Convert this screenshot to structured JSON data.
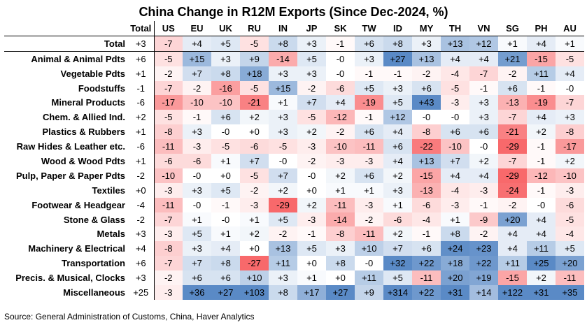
{
  "chart_data": {
    "type": "heatmap",
    "title": "China Change in R12M Exports (Since Dec-2024, %)",
    "columns": [
      "Total",
      "US",
      "EU",
      "UK",
      "RU",
      "IN",
      "JP",
      "SK",
      "TW",
      "ID",
      "MY",
      "TH",
      "VN",
      "SG",
      "PH",
      "AU"
    ],
    "rows": [
      {
        "label": "Total",
        "values": [
          "+3",
          "-7",
          "+4",
          "+5",
          "-5",
          "+8",
          "+3",
          "-1",
          "+6",
          "+8",
          "+3",
          "+13",
          "+12",
          "+1",
          "+4",
          "+1"
        ]
      },
      {
        "label": "Animal & Animal Pdts",
        "values": [
          "+6",
          "-5",
          "+15",
          "+3",
          "+9",
          "-14",
          "+5",
          "-0",
          "+3",
          "+27",
          "+13",
          "+4",
          "+4",
          "+21",
          "-15",
          "-5"
        ]
      },
      {
        "label": "Vegetable Pdts",
        "values": [
          "+1",
          "-2",
          "+7",
          "+8",
          "+18",
          "+3",
          "+3",
          "-0",
          "-1",
          "-1",
          "-2",
          "-4",
          "-7",
          "-2",
          "+11",
          "+4"
        ]
      },
      {
        "label": "Foodstuffs",
        "values": [
          "-1",
          "-7",
          "-2",
          "-16",
          "-5",
          "+15",
          "-2",
          "-6",
          "+5",
          "+3",
          "+6",
          "-5",
          "-1",
          "+6",
          "-1",
          "-0"
        ]
      },
      {
        "label": "Mineral Products",
        "values": [
          "-6",
          "-17",
          "-10",
          "-10",
          "-21",
          "+1",
          "+7",
          "+4",
          "-19",
          "+5",
          "+43",
          "-3",
          "+3",
          "-13",
          "-19",
          "-7"
        ]
      },
      {
        "label": "Chem. & Allied Ind.",
        "values": [
          "+2",
          "-5",
          "-1",
          "+6",
          "+2",
          "+3",
          "-5",
          "-12",
          "-1",
          "+12",
          "-0",
          "-0",
          "+3",
          "-7",
          "+4",
          "+3"
        ]
      },
      {
        "label": "Plastics & Rubbers",
        "values": [
          "+1",
          "-8",
          "+3",
          "-0",
          "+0",
          "+3",
          "+2",
          "-2",
          "+6",
          "+4",
          "-8",
          "+6",
          "+6",
          "-21",
          "+2",
          "-8"
        ]
      },
      {
        "label": "Raw Hides & Leather etc.",
        "values": [
          "-6",
          "-11",
          "-3",
          "-5",
          "-6",
          "-5",
          "-3",
          "-10",
          "-11",
          "+6",
          "-22",
          "-10",
          "-0",
          "-29",
          "-1",
          "-17"
        ]
      },
      {
        "label": "Wood & Wood Pdts",
        "values": [
          "+1",
          "-6",
          "-6",
          "+1",
          "+7",
          "-0",
          "-2",
          "-3",
          "-3",
          "+4",
          "+13",
          "+7",
          "+2",
          "-7",
          "-1",
          "+2"
        ]
      },
      {
        "label": "Pulp, Paper & Paper Pdts",
        "values": [
          "-2",
          "-10",
          "-0",
          "+0",
          "-5",
          "+7",
          "-0",
          "+2",
          "+6",
          "+2",
          "-15",
          "+4",
          "+4",
          "-29",
          "-12",
          "-10"
        ]
      },
      {
        "label": "Textiles",
        "values": [
          "+0",
          "-3",
          "+3",
          "+5",
          "-2",
          "+2",
          "+0",
          "+1",
          "+1",
          "+3",
          "-13",
          "-4",
          "-3",
          "-24",
          "-1",
          "-3"
        ]
      },
      {
        "label": "Footwear & Headgear",
        "values": [
          "-4",
          "-11",
          "-0",
          "-1",
          "-3",
          "-29",
          "+2",
          "-11",
          "-3",
          "+1",
          "-6",
          "-3",
          "-1",
          "-2",
          "-0",
          "-6"
        ]
      },
      {
        "label": "Stone & Glass",
        "values": [
          "-2",
          "-7",
          "+1",
          "-0",
          "+1",
          "+5",
          "-3",
          "-14",
          "-2",
          "-6",
          "-4",
          "+1",
          "-9",
          "+20",
          "+4",
          "-5"
        ]
      },
      {
        "label": "Metals",
        "values": [
          "+3",
          "-3",
          "+5",
          "+1",
          "+2",
          "-2",
          "-1",
          "-8",
          "-11",
          "+2",
          "-1",
          "+8",
          "-2",
          "+4",
          "+4",
          "-4"
        ]
      },
      {
        "label": "Machinery & Electrical",
        "values": [
          "+4",
          "-8",
          "+3",
          "+4",
          "+0",
          "+13",
          "+5",
          "+3",
          "+10",
          "+7",
          "+6",
          "+24",
          "+23",
          "+4",
          "+11",
          "+5"
        ]
      },
      {
        "label": "Transportation",
        "values": [
          "+6",
          "-7",
          "+7",
          "+8",
          "-27",
          "+11",
          "+0",
          "+8",
          "-0",
          "+32",
          "+22",
          "+18",
          "+22",
          "+11",
          "+25",
          "+20"
        ]
      },
      {
        "label": "Precis. & Musical, Clocks",
        "values": [
          "+3",
          "-2",
          "+6",
          "+6",
          "+10",
          "+3",
          "+1",
          "+0",
          "+11",
          "+5",
          "-11",
          "+20",
          "+19",
          "-15",
          "+2",
          "-11"
        ]
      },
      {
        "label": "Miscellaneous",
        "values": [
          "+25",
          "-3",
          "+36",
          "+27",
          "+103",
          "+8",
          "+17",
          "+27",
          "+9",
          "+314",
          "+22",
          "+31",
          "+14",
          "+122",
          "+31",
          "+35"
        ]
      }
    ],
    "color_scale": {
      "negative": "#F8696B",
      "neutral": "#FFFFFF",
      "positive": "#5A8AC6",
      "saturation_at": 25
    }
  },
  "source": "Source: General Administration of Customs, China, Haver Analytics"
}
